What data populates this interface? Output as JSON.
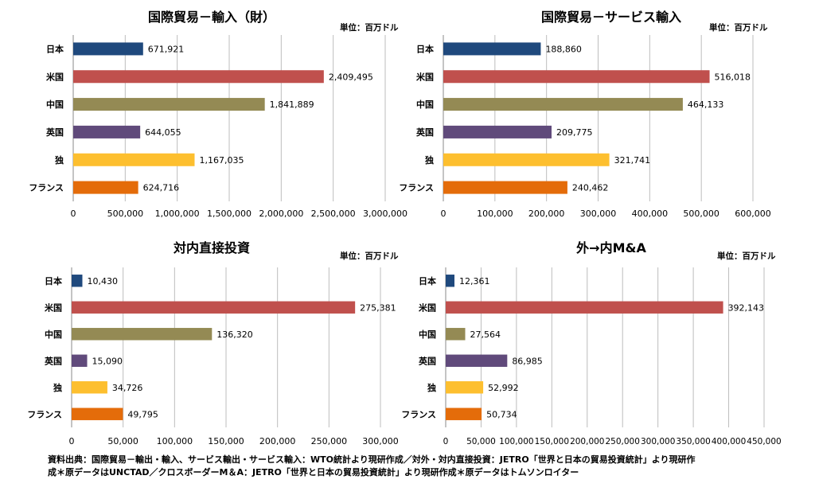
{
  "unit_label": "単位：百万ドル",
  "chart_data": [
    {
      "type": "bar",
      "orientation": "horizontal",
      "title": "国際貿易－輸入（財）",
      "categories": [
        "日本",
        "米国",
        "中国",
        "英国",
        "独",
        "フランス"
      ],
      "values": [
        671921,
        2409495,
        1841889,
        644055,
        1167035,
        624716
      ],
      "value_labels": [
        "671,921",
        "2,409,495",
        "1,841,889",
        "644,055",
        "1,167,035",
        "624,716"
      ],
      "xlim": [
        0,
        3000000
      ],
      "ticks": [
        "0",
        "500,000",
        "1,000,000",
        "1,500,000",
        "2,000,000",
        "2,500,000",
        "3,000,000"
      ],
      "grid": true
    },
    {
      "type": "bar",
      "orientation": "horizontal",
      "title": "国際貿易－サービス輸入",
      "categories": [
        "日本",
        "米国",
        "中国",
        "英国",
        "独",
        "フランス"
      ],
      "values": [
        188860,
        516018,
        464133,
        209775,
        321741,
        240462
      ],
      "value_labels": [
        "188,860",
        "516,018",
        "464,133",
        "209,775",
        "321,741",
        "240,462"
      ],
      "xlim": [
        0,
        600000
      ],
      "ticks": [
        "0",
        "100,000",
        "200,000",
        "300,000",
        "400,000",
        "500,000",
        "600,000"
      ],
      "grid": true
    },
    {
      "type": "bar",
      "orientation": "horizontal",
      "title": "対内直接投資",
      "categories": [
        "日本",
        "米国",
        "中国",
        "英国",
        "独",
        "フランス"
      ],
      "values": [
        10430,
        275381,
        136320,
        15090,
        34726,
        49795
      ],
      "value_labels": [
        "10,430",
        "275,381",
        "136,320",
        "15,090",
        "34,726",
        "49,795"
      ],
      "xlim": [
        0,
        300000
      ],
      "ticks": [
        "0",
        "50,000",
        "100,000",
        "150,000",
        "200,000",
        "250,000",
        "300,000"
      ],
      "grid": true
    },
    {
      "type": "bar",
      "orientation": "horizontal",
      "title": "外→内M&A",
      "categories": [
        "日本",
        "米国",
        "中国",
        "英国",
        "独",
        "フランス"
      ],
      "values": [
        12361,
        392143,
        27564,
        86985,
        52992,
        50734
      ],
      "value_labels": [
        "12,361",
        "392,143",
        "27,564",
        "86,985",
        "52,992",
        "50,734"
      ],
      "xlim": [
        0,
        450000
      ],
      "ticks": [
        "0",
        "50,000",
        "100,000",
        "150,000",
        "200,000",
        "250,000",
        "300,000",
        "350,000",
        "400,000",
        "450,000"
      ],
      "grid": true
    }
  ],
  "colors": [
    "#1f497d",
    "#c0504d",
    "#948a54",
    "#604a7b",
    "#fdbf2f",
    "#e46c0a"
  ],
  "source_lines": [
    "資料出典：国際貿易－輸出・輸入、サービス輸出・サービス輸入：WTO統計より現研作成／対外・対内直接投資：JETRO「世界と日本の貿易投資統計」より現研作",
    "成＊原データはUNCTAD／クロスボーダーM＆A：JETRO「世界と日本の貿易投資統計」より現研作成＊原データはトムソンロイター"
  ]
}
